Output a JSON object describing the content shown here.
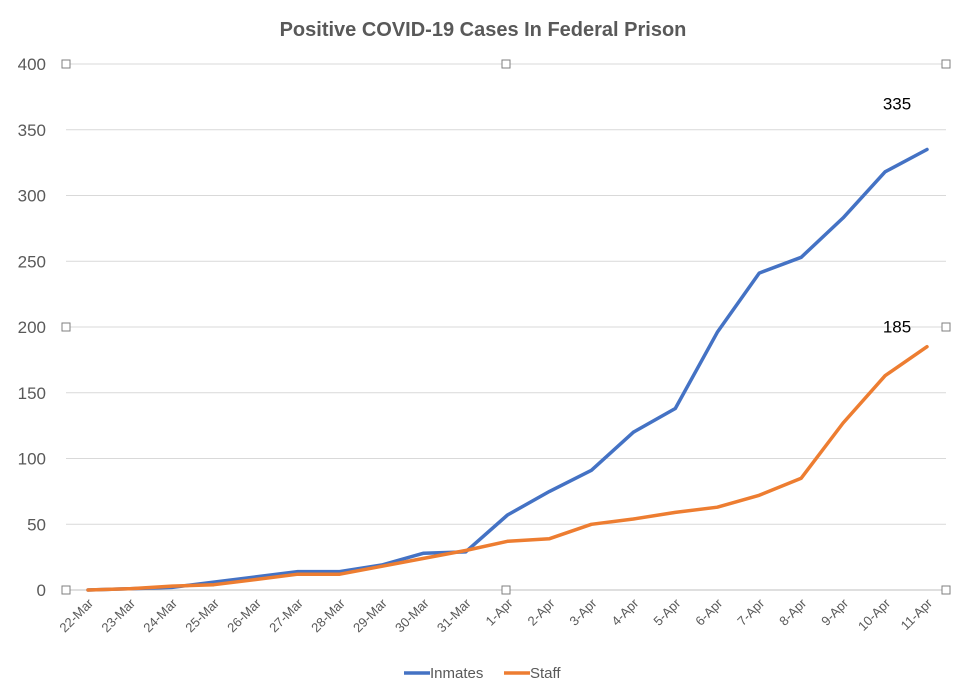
{
  "chart_data": {
    "type": "line",
    "title": "Positive COVID-19 Cases In Federal Prison",
    "xlabel": "",
    "ylabel": "",
    "categories": [
      "22-Mar",
      "23-Mar",
      "24-Mar",
      "25-Mar",
      "26-Mar",
      "27-Mar",
      "28-Mar",
      "29-Mar",
      "30-Mar",
      "31-Mar",
      "1-Apr",
      "2-Apr",
      "3-Apr",
      "4-Apr",
      "5-Apr",
      "6-Apr",
      "7-Apr",
      "8-Apr",
      "9-Apr",
      "10-Apr",
      "11-Apr"
    ],
    "ylim": [
      0,
      400
    ],
    "yticks": [
      "0",
      "50",
      "100",
      "150",
      "200",
      "250",
      "300",
      "350",
      "400"
    ],
    "grid": true,
    "legend_position": "bottom",
    "series": [
      {
        "name": "Inmates",
        "color": "#4472c4",
        "values": [
          0,
          1,
          2,
          6,
          10,
          14,
          14,
          19,
          28,
          29,
          57,
          75,
          91,
          120,
          138,
          196,
          241,
          253,
          283,
          318,
          335
        ]
      },
      {
        "name": "Staff",
        "color": "#ed7d31",
        "values": [
          0,
          1,
          3,
          4,
          8,
          12,
          12,
          18,
          24,
          30,
          37,
          39,
          50,
          54,
          59,
          63,
          72,
          85,
          127,
          163,
          185
        ]
      }
    ],
    "annotations": [
      {
        "series": 0,
        "text": "335"
      },
      {
        "series": 1,
        "text": "185"
      }
    ]
  }
}
